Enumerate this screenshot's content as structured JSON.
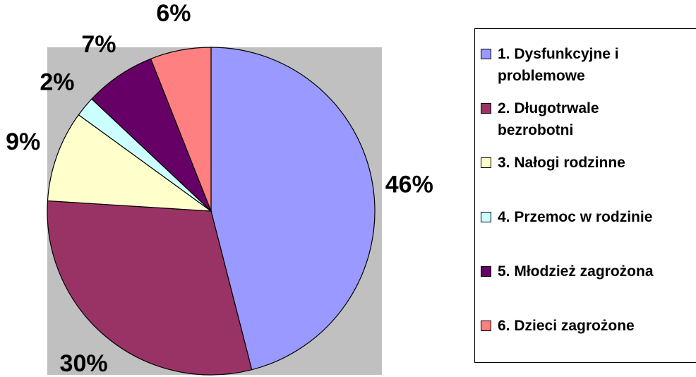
{
  "chart_data": {
    "type": "pie",
    "categories": [
      "1. Dysfunkcyjne i problemowe",
      "2. Długotrwale bezrobotni",
      "3. Nałogi rodzinne",
      "4. Przemoc w rodzinie",
      "5. Młodzież zagrożona",
      "6. Dzieci zagrożone"
    ],
    "values": [
      46,
      30,
      9,
      2,
      7,
      6
    ],
    "value_labels": [
      "46%",
      "30%",
      "9%",
      "2%",
      "7%",
      "6%"
    ],
    "colors": [
      "#9999ff",
      "#993366",
      "#ffffcc",
      "#ccffff",
      "#660066",
      "#ff8080"
    ],
    "legend": "right"
  }
}
